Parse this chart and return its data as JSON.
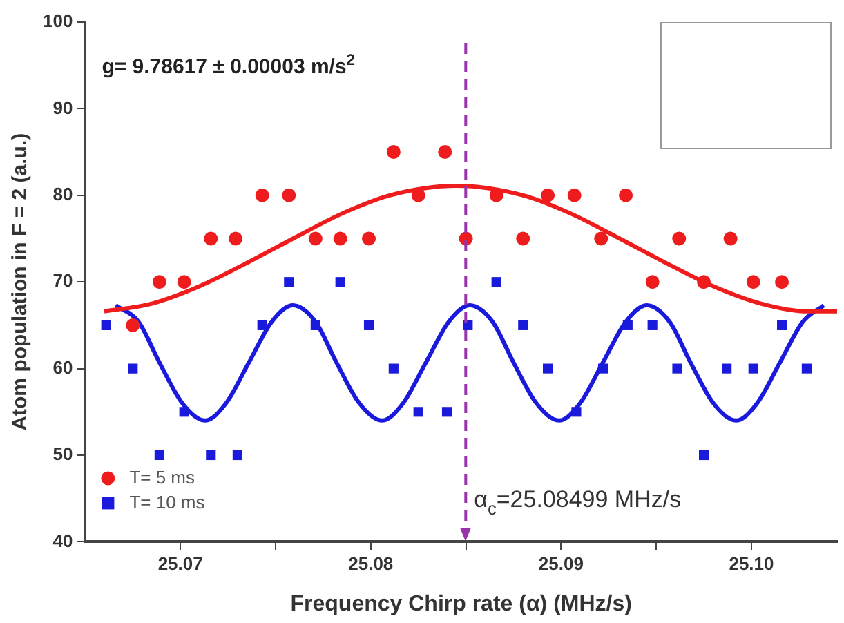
{
  "chart_data": {
    "type": "scatter",
    "xlabel": "Frequency Chirp rate (α) (MHz/s)",
    "ylabel": "Atom population in F = 2 (a.u.)",
    "xlim": [
      25.065,
      25.1045
    ],
    "xticks": [
      {
        "value": 25.07,
        "label": "25.07"
      },
      {
        "value": 25.075,
        "label": null
      },
      {
        "value": 25.08,
        "label": "25.08"
      },
      {
        "value": 25.085,
        "label": null
      },
      {
        "value": 25.09,
        "label": "25.09"
      },
      {
        "value": 25.095,
        "label": null
      },
      {
        "value": 25.1,
        "label": "25.10"
      }
    ],
    "ylim": [
      40,
      100
    ],
    "yticks": [
      40,
      50,
      60,
      70,
      80,
      90,
      100
    ],
    "grid": false,
    "legend": "bottom left",
    "annotations": [
      "g= 9.78617 ± 0.00003 m/s$^{2}$"
    ],
    "ref_lines": [
      {
        "axis": "x",
        "value": 25.08499,
        "label": "α$_{c}$=25.08499 MHz/s",
        "color": "#9933aa",
        "line_style": "dashed"
      }
    ],
    "series": [
      {
        "name": "T= 5 ms",
        "type": "scatter",
        "marker": "circle",
        "color": "#ee1c1c",
        "x": [
          25.0675,
          25.0689,
          25.0702,
          25.0716,
          25.0729,
          25.0743,
          25.0757,
          25.0771,
          25.0784,
          25.0799,
          25.0812,
          25.0825,
          25.0839,
          25.085,
          25.0866,
          25.088,
          25.0893,
          25.0907,
          25.0921,
          25.0934,
          25.0948,
          25.0962,
          25.0975,
          25.0989,
          25.1001,
          25.1016
        ],
        "values": [
          65,
          70,
          70,
          75,
          75,
          80,
          80,
          75,
          75,
          75,
          85,
          80,
          85,
          75,
          80,
          75,
          80,
          80,
          75,
          80,
          70,
          75,
          70,
          75,
          70,
          70
        ]
      },
      {
        "name": "T= 10 ms",
        "type": "scatter",
        "marker": "square",
        "color": "#1a1adc",
        "x": [
          25.0661,
          25.0675,
          25.0689,
          25.0702,
          25.0716,
          25.073,
          25.0743,
          25.0757,
          25.0771,
          25.0784,
          25.0799,
          25.0812,
          25.0825,
          25.084,
          25.0851,
          25.0866,
          25.088,
          25.0893,
          25.0908,
          25.0922,
          25.0935,
          25.0948,
          25.0961,
          25.0975,
          25.0987,
          25.1001,
          25.1016,
          25.1029
        ],
        "values": [
          65,
          60,
          50,
          55,
          50,
          50,
          65,
          70,
          65,
          70,
          65,
          60,
          55,
          55,
          65,
          70,
          65,
          60,
          55,
          60,
          65,
          65,
          60,
          50,
          60,
          60,
          65,
          60
        ]
      },
      {
        "type": "line",
        "marker": "none",
        "color": "#ee1c1c",
        "x": [
          25.066,
          25.0685,
          25.071,
          25.0735,
          25.076,
          25.0785,
          25.081,
          25.0845,
          25.088,
          25.0905,
          25.093,
          25.0955,
          25.098,
          25.1005,
          25.103,
          25.1045
        ],
        "values": [
          66.6,
          67.5,
          69.5,
          72.2,
          75.1,
          77.9,
          80.0,
          81.1,
          80.0,
          77.9,
          75.1,
          72.2,
          69.5,
          67.5,
          66.6,
          66.6
        ]
      },
      {
        "type": "line",
        "marker": "none",
        "color": "#1a1adc",
        "x": [
          25.0666,
          25.0678,
          25.0689,
          25.0701,
          25.0713,
          25.0724,
          25.0736,
          25.0748,
          25.0759,
          25.0771,
          25.0782,
          25.0794,
          25.0806,
          25.0817,
          25.0829,
          25.0841,
          25.0852,
          25.0864,
          25.0875,
          25.0887,
          25.0899,
          25.091,
          25.0922,
          25.0934,
          25.0945,
          25.0957,
          25.0968,
          25.098,
          25.0992,
          25.1003,
          25.1015,
          25.1027,
          25.1038
        ],
        "values": [
          67.3,
          65.4,
          60.7,
          56.0,
          54.0,
          56.0,
          60.7,
          65.4,
          67.3,
          65.4,
          60.7,
          56.0,
          54.0,
          56.0,
          60.7,
          65.4,
          67.3,
          65.4,
          60.7,
          56.0,
          54.0,
          56.0,
          60.7,
          65.4,
          67.3,
          65.4,
          60.7,
          56.0,
          54.0,
          56.0,
          60.7,
          65.4,
          67.3
        ]
      }
    ]
  }
}
